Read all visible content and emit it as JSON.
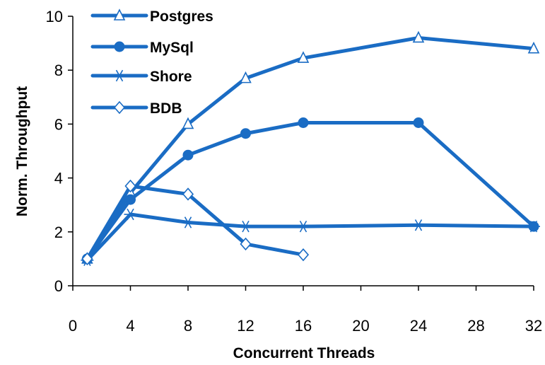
{
  "chart_data": {
    "type": "line",
    "title": "",
    "xlabel": "Concurrent Threads",
    "ylabel": "Norm. Throughput",
    "xlim": [
      0,
      32
    ],
    "ylim": [
      0,
      10
    ],
    "xticks": [
      0,
      4,
      8,
      12,
      16,
      20,
      24,
      28,
      32
    ],
    "yticks": [
      0,
      2,
      4,
      6,
      8,
      10
    ],
    "grid": false,
    "legend_position": "top-left",
    "color": "#1a6cc4",
    "series": [
      {
        "name": "Postgres",
        "marker": "triangle-open",
        "x": [
          1,
          4,
          8,
          12,
          16,
          24,
          32
        ],
        "y": [
          1.0,
          3.45,
          6.0,
          7.7,
          8.45,
          9.2,
          8.8
        ]
      },
      {
        "name": "MySql",
        "marker": "circle-filled",
        "x": [
          1,
          4,
          8,
          12,
          16,
          24,
          32
        ],
        "y": [
          1.0,
          3.2,
          4.85,
          5.65,
          6.05,
          6.05,
          2.2
        ]
      },
      {
        "name": "Shore",
        "marker": "asterisk",
        "x": [
          1,
          4,
          8,
          12,
          16,
          24,
          32
        ],
        "y": [
          0.95,
          2.65,
          2.35,
          2.2,
          2.2,
          2.25,
          2.2
        ]
      },
      {
        "name": "BDB",
        "marker": "diamond-open",
        "x": [
          1,
          4,
          8,
          12,
          16
        ],
        "y": [
          1.0,
          3.7,
          3.4,
          1.55,
          1.15
        ]
      }
    ]
  }
}
